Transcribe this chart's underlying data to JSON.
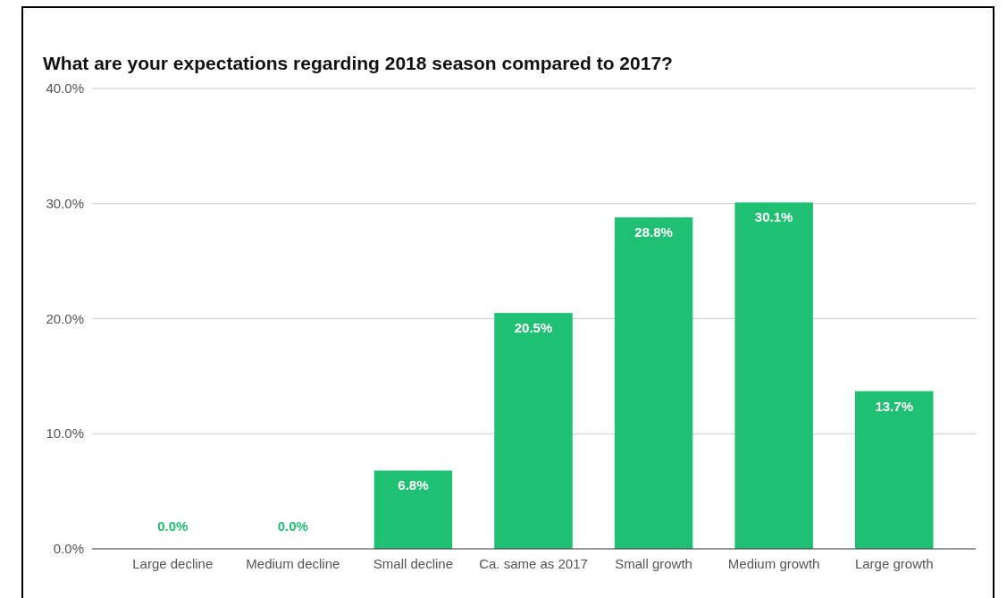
{
  "chart_data": {
    "type": "bar",
    "title": "What are your expectations regarding 2018 season compared to 2017?",
    "categories": [
      "Large decline",
      "Medium decline",
      "Small decline",
      "Ca. same as 2017",
      "Small growth",
      "Medium growth",
      "Large growth"
    ],
    "values": [
      0,
      0,
      6.8,
      20.5,
      28.8,
      30.1,
      13.7
    ],
    "value_labels": [
      "0.0%",
      "0.0%",
      "6.8%",
      "20.5%",
      "28.8%",
      "30.1%",
      "13.7%"
    ],
    "color": "#20c072",
    "ylim": [
      0,
      40
    ],
    "yticks": [
      {
        "value": 0,
        "label": "0.0%"
      },
      {
        "value": 10,
        "label": "10.0%"
      },
      {
        "value": 20,
        "label": "20.0%"
      },
      {
        "value": 30,
        "label": "30.0%"
      },
      {
        "value": 40,
        "label": "40.0%"
      }
    ],
    "grid": "y"
  }
}
